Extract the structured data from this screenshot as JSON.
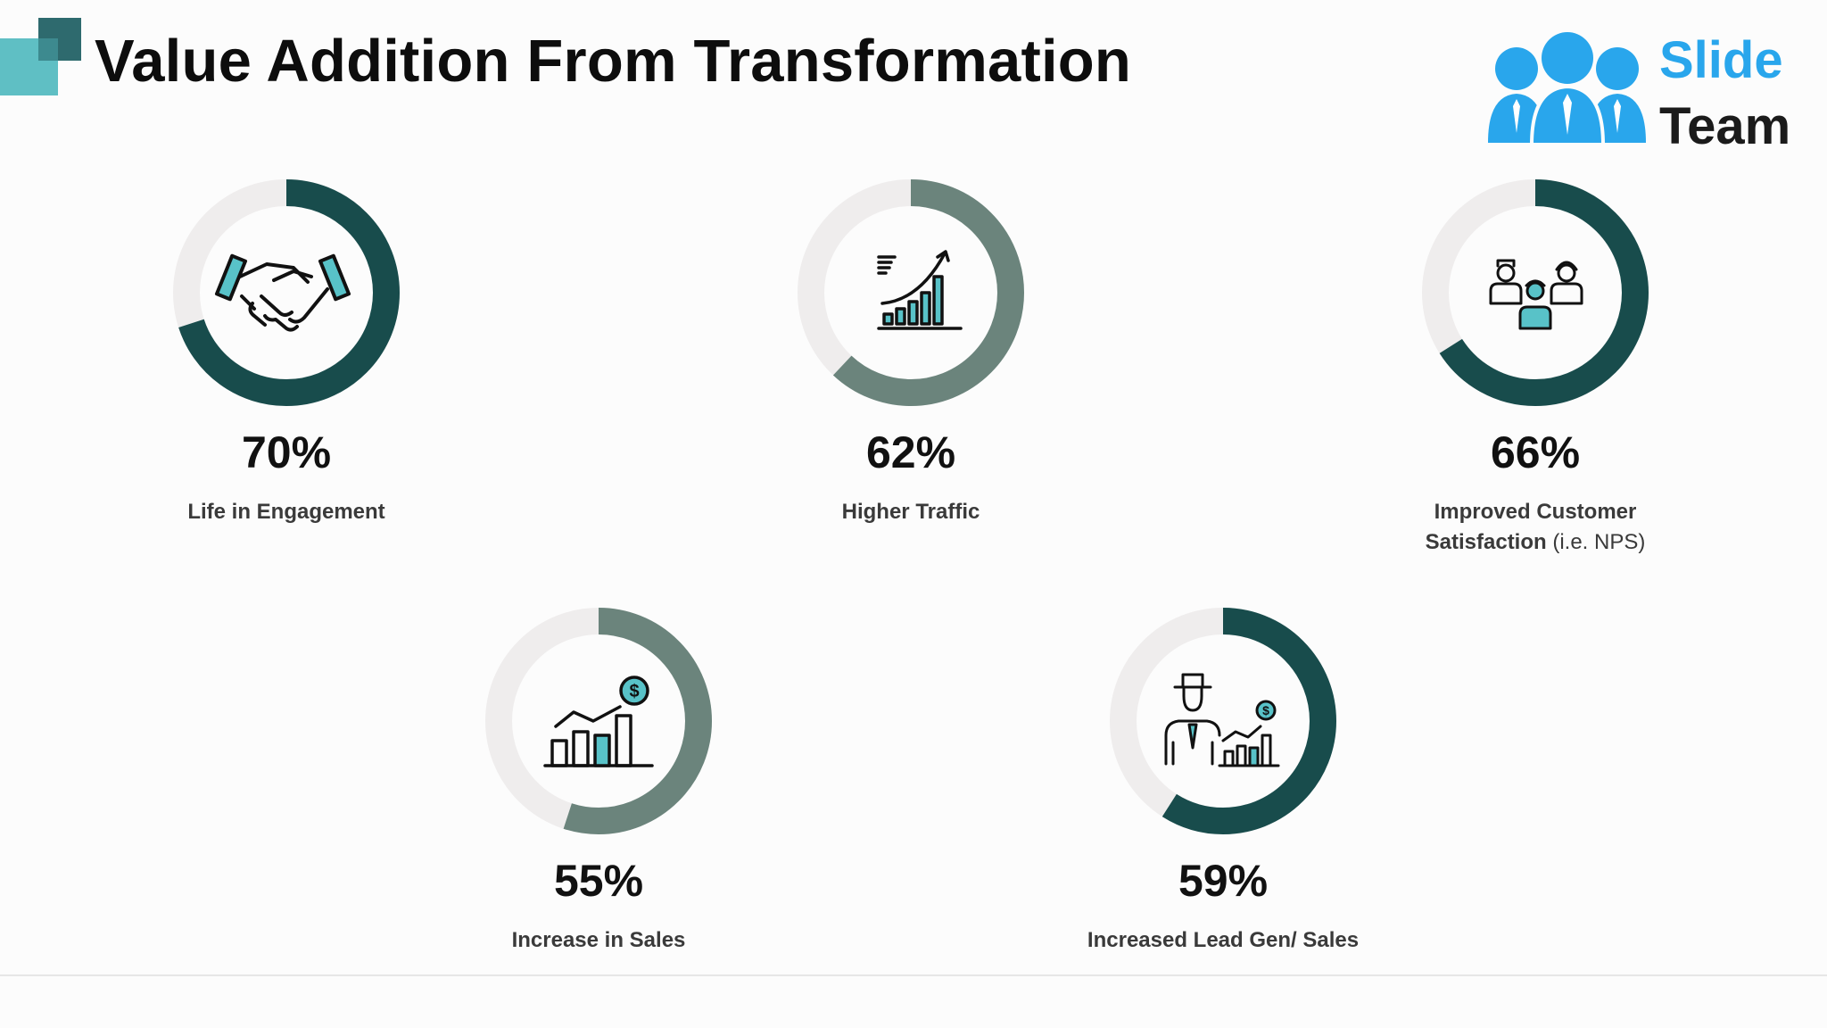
{
  "header": {
    "title": "Value Addition From Transformation"
  },
  "logo": {
    "line1": "Slide",
    "line2": "Team",
    "accent_color": "#29a6ec"
  },
  "colors": {
    "dark_teal": "#184c4c",
    "grey_teal": "#6b847c",
    "track": "#efeded",
    "icon_accent": "#58c2c8"
  },
  "chart_data": {
    "type": "pie",
    "series": [
      {
        "name": "Life in Engagement",
        "value": 70,
        "display": "70%",
        "color": "#184c4c",
        "icon": "handshake-icon"
      },
      {
        "name": "Higher Traffic",
        "value": 62,
        "display": "62%",
        "color": "#6b847c",
        "icon": "growth-chart-icon"
      },
      {
        "name": "Improved Customer",
        "name_line2": "Satisfaction",
        "name_suffix": "(i.e. NPS)",
        "value": 66,
        "display": "66%",
        "color": "#184c4c",
        "icon": "customers-icon"
      },
      {
        "name": "Increase in Sales",
        "value": 55,
        "display": "55%",
        "color": "#6b847c",
        "icon": "sales-chart-icon"
      },
      {
        "name": "Increased Lead Gen/ Sales",
        "value": 59,
        "display": "59%",
        "color": "#184c4c",
        "icon": "salesman-chart-icon"
      }
    ]
  }
}
